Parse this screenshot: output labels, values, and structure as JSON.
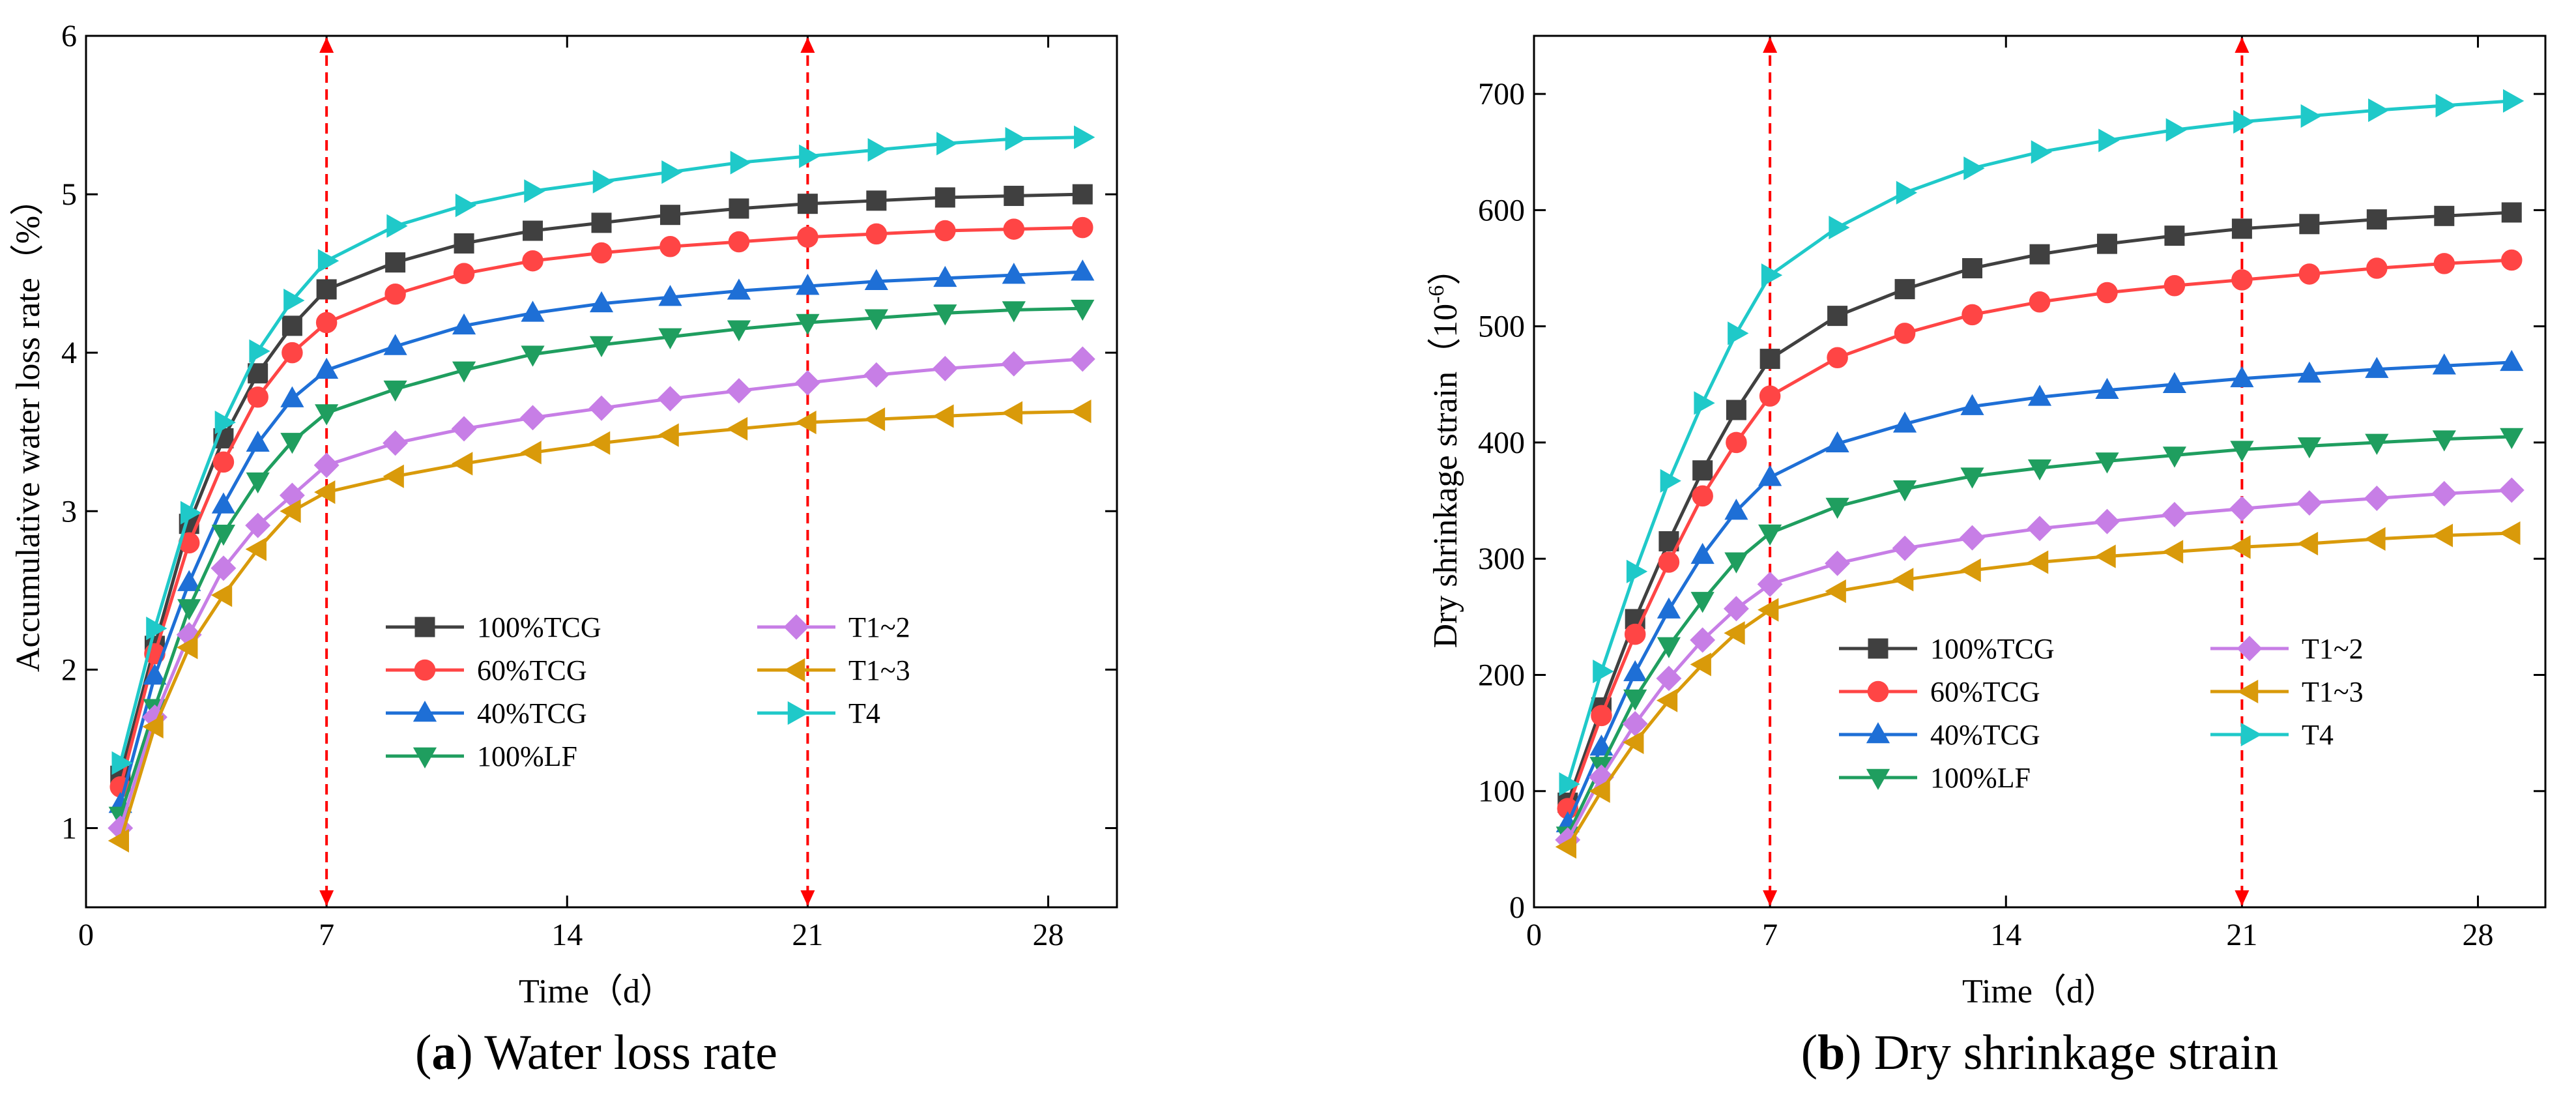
{
  "chart_data": [
    {
      "id": "a",
      "type": "line",
      "caption_letter": "a",
      "caption_text": " Water loss rate",
      "xlabel": "Time（d）",
      "ylabel": "Accumulative water loss rate（%）",
      "xlim": [
        0,
        30
      ],
      "ylim": [
        0.5,
        6
      ],
      "xticks": [
        0,
        7,
        14,
        21,
        28
      ],
      "yticks": [
        1,
        2,
        3,
        4,
        5,
        6
      ],
      "vlines": [
        7,
        21
      ],
      "x": [
        1,
        2,
        3,
        4,
        5,
        6,
        7,
        9,
        11,
        13,
        15,
        17,
        19,
        21,
        23,
        25,
        27,
        29
      ],
      "series": [
        {
          "name": "100%TCG",
          "color": "#404040",
          "marker": "square",
          "values": [
            1.33,
            2.15,
            2.92,
            3.46,
            3.87,
            4.17,
            4.4,
            4.57,
            4.69,
            4.77,
            4.82,
            4.87,
            4.91,
            4.94,
            4.96,
            4.98,
            4.99,
            5.0
          ]
        },
        {
          "name": "60%TCG",
          "color": "#ff4545",
          "marker": "circle",
          "values": [
            1.26,
            2.1,
            2.8,
            3.31,
            3.72,
            4.0,
            4.19,
            4.37,
            4.5,
            4.58,
            4.63,
            4.67,
            4.7,
            4.73,
            4.75,
            4.77,
            4.78,
            4.79
          ]
        },
        {
          "name": "40%TCG",
          "color": "#1e6fd6",
          "marker": "triangle-up",
          "values": [
            1.15,
            1.96,
            2.55,
            3.04,
            3.43,
            3.71,
            3.89,
            4.04,
            4.17,
            4.25,
            4.31,
            4.35,
            4.39,
            4.42,
            4.45,
            4.47,
            4.49,
            4.51
          ]
        },
        {
          "name": "100%LF",
          "color": "#1f9e5f",
          "marker": "triangle-down",
          "values": [
            1.08,
            1.76,
            2.39,
            2.86,
            3.19,
            3.44,
            3.62,
            3.77,
            3.89,
            3.99,
            4.05,
            4.1,
            4.15,
            4.19,
            4.22,
            4.25,
            4.27,
            4.28
          ]
        },
        {
          "name": "T1~2",
          "color": "#c77ee6",
          "marker": "diamond",
          "values": [
            1.0,
            1.7,
            2.22,
            2.64,
            2.91,
            3.1,
            3.29,
            3.43,
            3.52,
            3.59,
            3.65,
            3.71,
            3.76,
            3.81,
            3.86,
            3.9,
            3.93,
            3.96
          ]
        },
        {
          "name": "T1~3",
          "color": "#d99a0a",
          "marker": "triangle-left",
          "values": [
            0.92,
            1.64,
            2.14,
            2.47,
            2.76,
            3.0,
            3.12,
            3.22,
            3.3,
            3.37,
            3.43,
            3.48,
            3.52,
            3.56,
            3.58,
            3.6,
            3.62,
            3.63
          ]
        },
        {
          "name": "T4",
          "color": "#1fc9c9",
          "marker": "triangle-right",
          "values": [
            1.41,
            2.26,
            2.99,
            3.56,
            4.01,
            4.33,
            4.58,
            4.8,
            4.93,
            5.02,
            5.08,
            5.14,
            5.2,
            5.24,
            5.28,
            5.32,
            5.35,
            5.36
          ]
        }
      ]
    },
    {
      "id": "b",
      "type": "line",
      "caption_letter": "b",
      "caption_text": " Dry shrinkage strain",
      "xlabel": "Time（d）",
      "ylabel": "Dry shrinkage strain（10",
      "ylabel_sup": "-6",
      "ylabel_end": "）",
      "xlim": [
        0,
        30
      ],
      "ylim": [
        0,
        750
      ],
      "xticks": [
        0,
        7,
        14,
        21,
        28
      ],
      "yticks": [
        0,
        100,
        200,
        300,
        400,
        500,
        600,
        700
      ],
      "vlines": [
        7,
        21
      ],
      "x": [
        1,
        2,
        3,
        4,
        5,
        6,
        7,
        9,
        11,
        13,
        15,
        17,
        19,
        21,
        23,
        25,
        27,
        29
      ],
      "series": [
        {
          "name": "100%TCG",
          "color": "#404040",
          "marker": "square",
          "values": [
            90,
            172,
            248,
            315,
            376,
            428,
            472,
            509,
            532,
            550,
            562,
            571,
            578,
            584,
            588,
            592,
            595,
            598
          ]
        },
        {
          "name": "60%TCG",
          "color": "#ff4545",
          "marker": "circle",
          "values": [
            85,
            165,
            235,
            297,
            354,
            400,
            440,
            473,
            494,
            510,
            521,
            529,
            535,
            540,
            545,
            550,
            554,
            557
          ]
        },
        {
          "name": "40%TCG",
          "color": "#1e6fd6",
          "marker": "triangle-up",
          "values": [
            72,
            138,
            202,
            256,
            303,
            341,
            370,
            399,
            416,
            431,
            439,
            445,
            450,
            455,
            459,
            463,
            466,
            469
          ]
        },
        {
          "name": "100%LF",
          "color": "#1f9e5f",
          "marker": "triangle-down",
          "values": [
            62,
            122,
            180,
            225,
            264,
            298,
            322,
            345,
            360,
            371,
            378,
            384,
            389,
            394,
            397,
            400,
            403,
            405
          ]
        },
        {
          "name": "T1~2",
          "color": "#c77ee6",
          "marker": "diamond",
          "values": [
            58,
            112,
            158,
            197,
            230,
            257,
            278,
            296,
            309,
            318,
            326,
            332,
            338,
            343,
            348,
            352,
            356,
            359
          ]
        },
        {
          "name": "T1~3",
          "color": "#d99a0a",
          "marker": "triangle-left",
          "values": [
            52,
            100,
            142,
            178,
            209,
            236,
            256,
            272,
            282,
            290,
            297,
            302,
            306,
            310,
            313,
            317,
            320,
            322
          ]
        },
        {
          "name": "T4",
          "color": "#1fc9c9",
          "marker": "triangle-right",
          "values": [
            106,
            203,
            289,
            367,
            434,
            494,
            544,
            585,
            615,
            636,
            650,
            660,
            669,
            676,
            681,
            686,
            690,
            694
          ]
        }
      ]
    }
  ]
}
